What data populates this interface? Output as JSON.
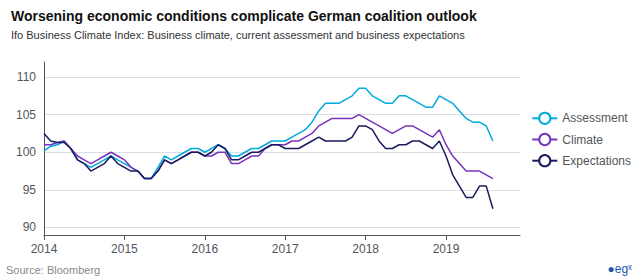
{
  "chart_data": {
    "type": "line",
    "title": "Worsening economic conditions complicate German coalition outlook",
    "subtitle": "Ifo Business Climate Index: Business climate, current assessment and business expectations",
    "annotations": [
      "Source: Bloomberg",
      "●egˣ"
    ],
    "x": [
      2014.0,
      2014.083,
      2014.167,
      2014.25,
      2014.333,
      2014.417,
      2014.5,
      2014.583,
      2014.667,
      2014.75,
      2014.833,
      2014.917,
      2015.0,
      2015.083,
      2015.167,
      2015.25,
      2015.333,
      2015.417,
      2015.5,
      2015.583,
      2015.667,
      2015.75,
      2015.833,
      2015.917,
      2016.0,
      2016.083,
      2016.167,
      2016.25,
      2016.333,
      2016.417,
      2016.5,
      2016.583,
      2016.667,
      2016.75,
      2016.833,
      2016.917,
      2017.0,
      2017.083,
      2017.167,
      2017.25,
      2017.333,
      2017.417,
      2017.5,
      2017.583,
      2017.667,
      2017.75,
      2017.833,
      2017.917,
      2018.0,
      2018.083,
      2018.167,
      2018.25,
      2018.333,
      2018.417,
      2018.5,
      2018.583,
      2018.667,
      2018.75,
      2018.833,
      2018.917,
      2019.0,
      2019.083,
      2019.167,
      2019.25,
      2019.333,
      2019.417,
      2019.5,
      2019.583
    ],
    "series": [
      {
        "name": "Assessment",
        "color": "#00aadd",
        "values": [
          100.2,
          100.8,
          101.0,
          101.5,
          100.5,
          99.0,
          98.5,
          98.0,
          98.5,
          99.0,
          99.5,
          99.0,
          98.5,
          98.0,
          97.5,
          96.5,
          96.5,
          98.0,
          99.5,
          99.0,
          99.5,
          100.0,
          100.5,
          100.5,
          100.0,
          100.5,
          101.0,
          100.5,
          99.5,
          99.5,
          100.0,
          100.5,
          100.5,
          101.0,
          101.5,
          101.5,
          101.5,
          102.0,
          102.5,
          103.0,
          104.0,
          105.5,
          106.5,
          106.5,
          106.5,
          107.0,
          107.5,
          108.5,
          108.5,
          107.5,
          107.0,
          106.5,
          106.5,
          107.5,
          107.5,
          107.0,
          106.5,
          106.0,
          106.0,
          107.5,
          107.0,
          106.5,
          105.5,
          104.5,
          104.0,
          104.0,
          103.5,
          101.5
        ]
      },
      {
        "name": "Climate",
        "color": "#7733bb",
        "values": [
          101.0,
          101.0,
          101.3,
          101.5,
          100.5,
          99.5,
          99.0,
          98.5,
          99.0,
          99.5,
          100.0,
          99.5,
          99.0,
          98.0,
          97.5,
          96.5,
          96.5,
          97.5,
          99.0,
          98.5,
          99.0,
          99.5,
          100.0,
          100.0,
          99.5,
          99.5,
          100.0,
          100.0,
          98.5,
          98.5,
          99.0,
          99.5,
          99.5,
          100.5,
          101.0,
          101.0,
          101.0,
          101.5,
          101.5,
          102.0,
          102.5,
          103.5,
          104.0,
          104.5,
          104.5,
          104.5,
          104.5,
          105.0,
          104.5,
          104.0,
          103.5,
          103.0,
          102.5,
          103.0,
          103.5,
          103.5,
          103.0,
          102.5,
          102.0,
          103.0,
          101.0,
          99.5,
          98.5,
          97.5,
          97.5,
          97.5,
          97.0,
          96.5
        ]
      },
      {
        "name": "Expectations",
        "color": "#1a1a5e",
        "values": [
          102.5,
          101.5,
          101.3,
          101.3,
          100.5,
          99.0,
          98.5,
          97.5,
          98.0,
          98.5,
          99.5,
          98.5,
          98.0,
          97.5,
          97.5,
          96.5,
          96.5,
          97.5,
          99.0,
          98.5,
          99.0,
          99.5,
          100.0,
          100.0,
          99.5,
          100.0,
          101.0,
          100.5,
          99.0,
          99.0,
          99.5,
          100.0,
          100.0,
          100.5,
          101.0,
          101.0,
          100.5,
          100.5,
          100.5,
          101.0,
          101.5,
          102.0,
          101.5,
          101.5,
          101.5,
          101.5,
          102.0,
          103.5,
          103.5,
          103.0,
          101.5,
          100.5,
          100.5,
          101.0,
          101.0,
          101.5,
          101.5,
          101.0,
          100.5,
          101.5,
          99.5,
          97.0,
          95.5,
          94.0,
          94.0,
          95.5,
          95.5,
          92.5
        ]
      }
    ],
    "xlim": [
      2014.0,
      2019.92
    ],
    "xticks": [
      2014,
      2015,
      2016,
      2017,
      2018,
      2019
    ],
    "ylim": [
      89.0,
      112.0
    ],
    "yticks": [
      90,
      95,
      100,
      105,
      110
    ],
    "grid": true,
    "legend": "right"
  }
}
